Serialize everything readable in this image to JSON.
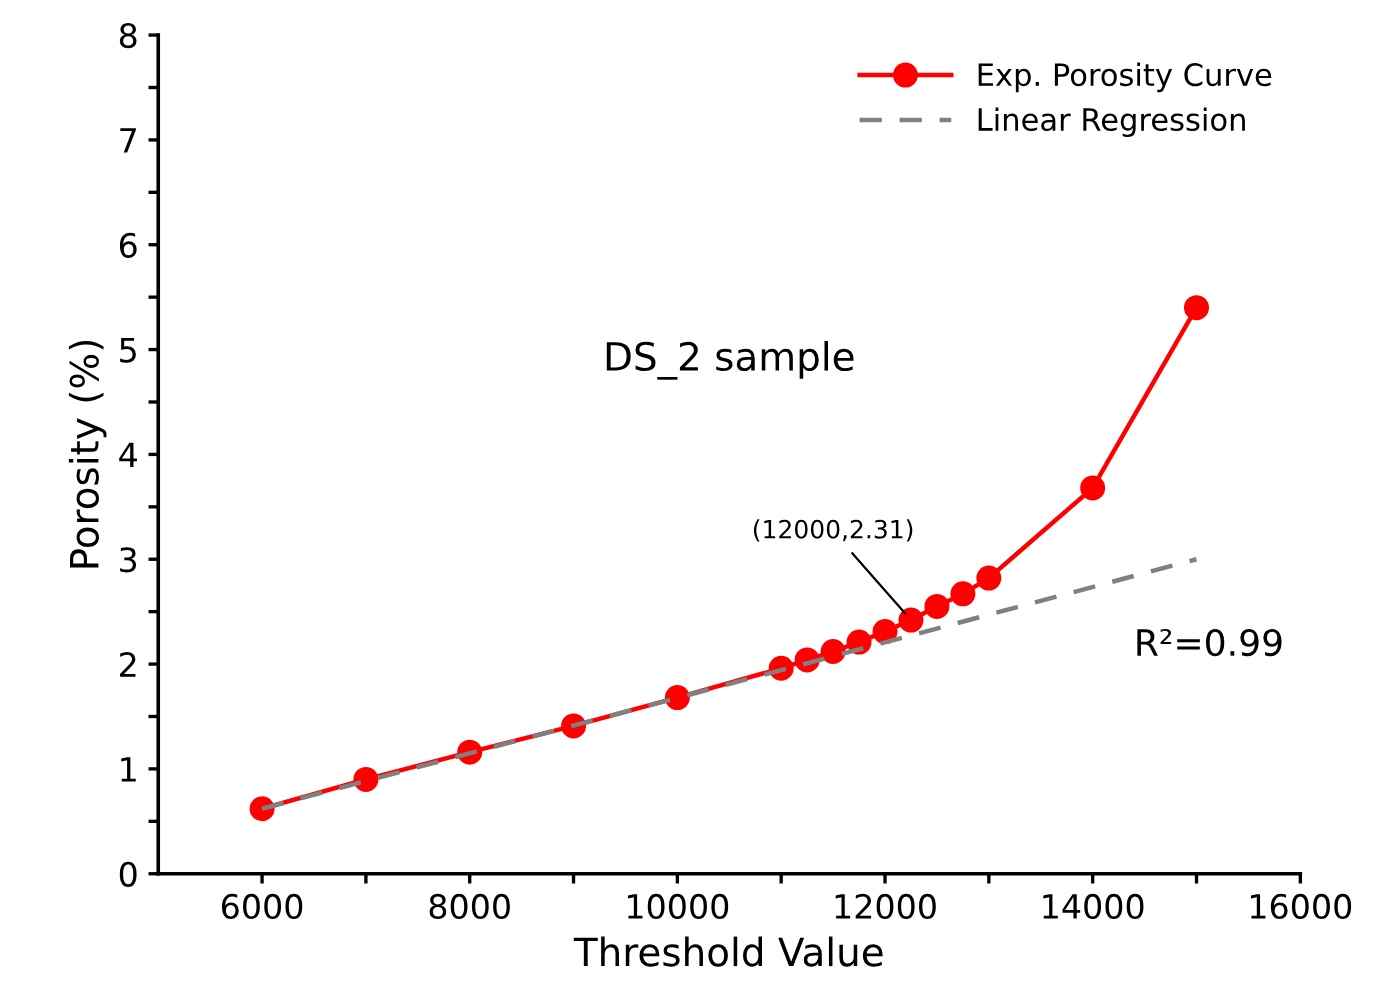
{
  "chart_data": {
    "type": "line",
    "xlabel": "Threshold Value",
    "ylabel": "Porosity (%)",
    "xlim": [
      5000,
      16000
    ],
    "ylim": [
      0,
      8
    ],
    "xticks": [
      6000,
      {
        "value": 7000,
        "label": null
      },
      8000,
      {
        "value": 9000,
        "label": null
      },
      10000,
      {
        "value": 11000,
        "label": null
      },
      12000,
      {
        "value": 13000,
        "label": null
      },
      14000,
      {
        "value": 15000,
        "label": null
      },
      16000
    ],
    "yticks": [
      0,
      {
        "value": 0.5,
        "label": null
      },
      1,
      {
        "value": 1.5,
        "label": null
      },
      2,
      {
        "value": 2.5,
        "label": null
      },
      3,
      {
        "value": 3.5,
        "label": null
      },
      4,
      {
        "value": 4.5,
        "label": null
      },
      5,
      {
        "value": 5.5,
        "label": null
      },
      6,
      {
        "value": 6.5,
        "label": null
      },
      7,
      {
        "value": 7.5,
        "label": null
      },
      8
    ],
    "legend": "top right",
    "grid": false,
    "series": [
      {
        "name": "Exp. Porosity Curve",
        "color": "#ff0000",
        "marker": "circle",
        "line_style": "solid",
        "x": [
          6000,
          7000,
          8000,
          9000,
          10000,
          11000,
          11250,
          11500,
          11750,
          12000,
          12250,
          12500,
          12750,
          13000,
          14000,
          15000
        ],
        "values": [
          0.62,
          0.9,
          1.16,
          1.41,
          1.68,
          1.96,
          2.04,
          2.12,
          2.21,
          2.31,
          2.42,
          2.55,
          2.67,
          2.82,
          3.68,
          5.4
        ]
      },
      {
        "name": "Linear Regression",
        "type": "line",
        "color": "#808080",
        "marker": "none",
        "line_style": "dashed",
        "x": [
          6000,
          15000
        ],
        "values": [
          0.62,
          3.0
        ]
      }
    ],
    "annotations": [
      "DS_2 sample",
      {
        "text": "(12000,2.31)",
        "x": 12250,
        "y": 2.42
      },
      "R²=0.99"
    ]
  }
}
